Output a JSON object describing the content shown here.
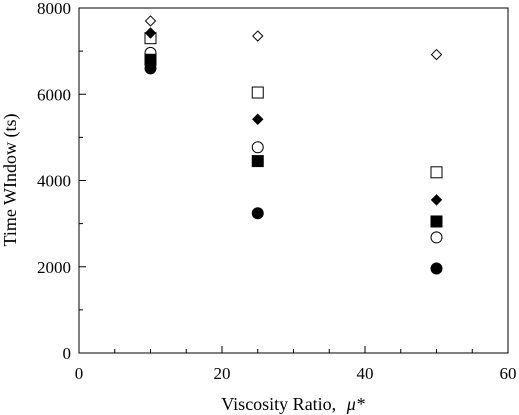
{
  "chart_data": {
    "type": "scatter",
    "title": "",
    "xlabel": "Viscosity Ratio,",
    "xlabel_symbol": "μ*",
    "ylabel": "Time WIndow (ts)",
    "xlim": [
      0,
      60
    ],
    "ylim": [
      0,
      8000
    ],
    "x_major_ticks": [
      0,
      20,
      40,
      60
    ],
    "x_minor_step": 5,
    "y_major_ticks": [
      0,
      2000,
      4000,
      6000,
      8000
    ],
    "y_minor_step": 1000,
    "grid": false,
    "legend": "none",
    "series": [
      {
        "marker": "open-diamond",
        "x": [
          10,
          25,
          50
        ],
        "y": [
          7700,
          7350,
          6920
        ]
      },
      {
        "marker": "open-square",
        "x": [
          10,
          25,
          50
        ],
        "y": [
          7300,
          6040,
          4190
        ]
      },
      {
        "marker": "filled-diamond",
        "x": [
          10,
          25,
          50
        ],
        "y": [
          7420,
          5420,
          3550
        ]
      },
      {
        "marker": "open-circle",
        "x": [
          10,
          25,
          50
        ],
        "y": [
          6960,
          4770,
          2680
        ]
      },
      {
        "marker": "filled-square",
        "x": [
          10,
          25,
          50
        ],
        "y": [
          6800,
          4450,
          3050
        ]
      },
      {
        "marker": "filled-circle",
        "x": [
          10,
          25,
          50
        ],
        "y": [
          6600,
          3240,
          1960
        ]
      }
    ]
  }
}
